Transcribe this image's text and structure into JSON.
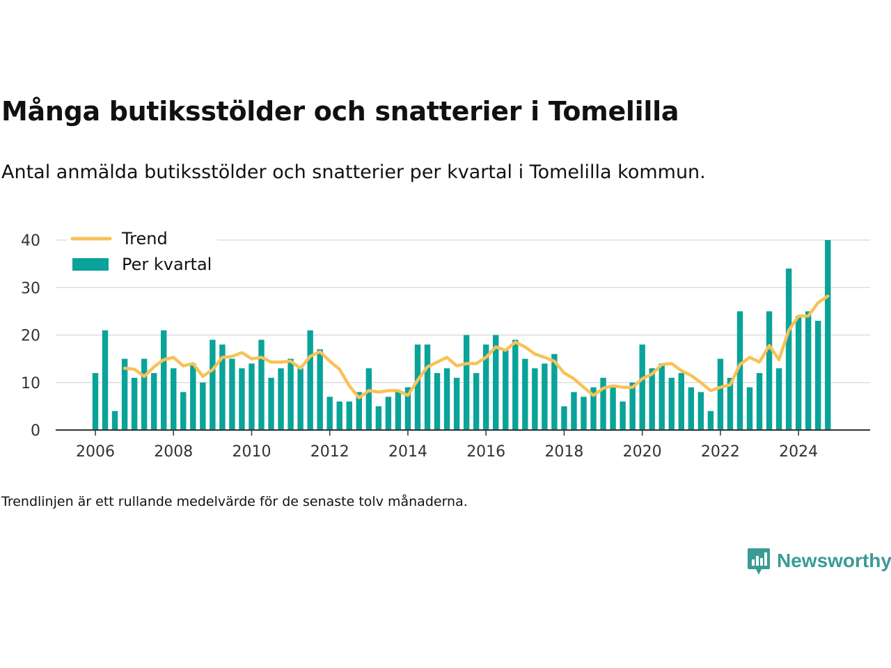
{
  "title": "Många butiksstölder och snatterier i Tomelilla",
  "subtitle": "Antal anmälda butiksstölder och snatterier per kvartal i Tomelilla kommun.",
  "footnote": "Trendlinjen är ett rullande medelvärde för de senaste tolv månaderna.",
  "brand": "Newsworthy",
  "colors": {
    "bar": "#0aa39a",
    "trend": "#f7c257",
    "grid": "#dddddd",
    "axis": "#333333"
  },
  "chart_data": {
    "type": "bar",
    "x_start": "2006 Q1",
    "period": "quarter",
    "x_ticks": [
      "2006",
      "2008",
      "2010",
      "2012",
      "2014",
      "2016",
      "2018",
      "2020",
      "2022",
      "2024"
    ],
    "y_ticks": [
      0,
      10,
      20,
      30,
      40
    ],
    "ylim": [
      0,
      40
    ],
    "grid": true,
    "legend_position": "top-left",
    "series": [
      {
        "name": "Per kvartal",
        "type": "bar",
        "values": [
          12,
          21,
          4,
          15,
          11,
          15,
          12,
          21,
          13,
          8,
          14,
          10,
          19,
          18,
          15,
          13,
          14,
          19,
          11,
          13,
          15,
          13,
          21,
          17,
          7,
          6,
          6,
          8,
          13,
          5,
          7,
          8,
          9,
          18,
          18,
          12,
          13,
          11,
          20,
          12,
          18,
          20,
          17,
          19,
          15,
          13,
          14,
          16,
          5,
          8,
          7,
          9,
          11,
          9,
          6,
          10,
          18,
          13,
          14,
          11,
          12,
          9,
          8,
          4,
          15,
          11,
          25,
          9,
          12,
          25,
          13,
          34,
          24,
          25,
          23,
          40
        ]
      },
      {
        "name": "Trend",
        "type": "line",
        "start_index": 3,
        "values": [
          13,
          12.8,
          11.3,
          13.3,
          14.8,
          15.3,
          13.5,
          14,
          11.3,
          12.7,
          15.3,
          15.5,
          16.3,
          15,
          15.3,
          14.3,
          14.3,
          14.5,
          13,
          15.5,
          16.5,
          14.5,
          12.8,
          9.3,
          6.8,
          8.3,
          8,
          8.3,
          8.3,
          7.3,
          10.5,
          13.3,
          14.3,
          15.3,
          13.5,
          14,
          14,
          15.3,
          17.5,
          16.8,
          18.5,
          17.5,
          16,
          15.3,
          14.5,
          12,
          10.8,
          9,
          7.3,
          8.8,
          9.3,
          9,
          9,
          10.8,
          11.8,
          13.8,
          14,
          12.5,
          11.5,
          10,
          8.3,
          9,
          9.5,
          13.8,
          15.3,
          14.3,
          17.8,
          14.8,
          21,
          24,
          24,
          26.8,
          28.2
        ]
      }
    ]
  },
  "legend": {
    "trend_label": "Trend",
    "bar_label": "Per kvartal"
  }
}
